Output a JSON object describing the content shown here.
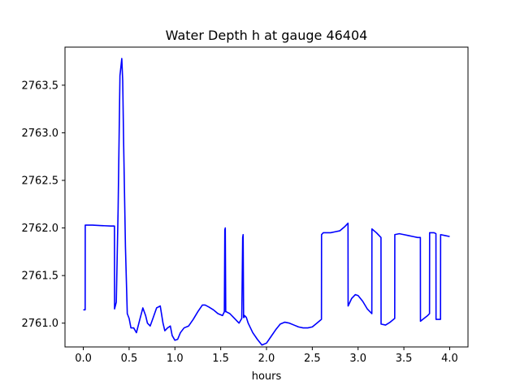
{
  "chart_data": {
    "type": "line",
    "title": "Water Depth h at gauge 46404",
    "xlabel": "hours",
    "ylabel": "",
    "xlim": [
      -0.2,
      4.2
    ],
    "ylim": [
      2760.75,
      2763.9
    ],
    "xticks": [
      0.0,
      0.5,
      1.0,
      1.5,
      2.0,
      2.5,
      3.0,
      3.5,
      4.0
    ],
    "xtick_labels": [
      "0.0",
      "0.5",
      "1.0",
      "1.5",
      "2.0",
      "2.5",
      "3.0",
      "3.5",
      "4.0"
    ],
    "yticks": [
      2761.0,
      2761.5,
      2762.0,
      2762.5,
      2763.0,
      2763.5
    ],
    "ytick_labels": [
      "2761.0",
      "2761.5",
      "2762.0",
      "2762.5",
      "2763.0",
      "2763.5"
    ],
    "grid": false,
    "series": [
      {
        "name": "",
        "color": "#0000ff",
        "x": [
          0.0,
          0.02,
          0.021,
          0.1,
          0.2,
          0.3,
          0.34,
          0.341,
          0.36,
          0.38,
          0.4,
          0.42,
          0.43,
          0.44,
          0.46,
          0.48,
          0.5,
          0.52,
          0.55,
          0.58,
          0.62,
          0.65,
          0.68,
          0.7,
          0.73,
          0.76,
          0.8,
          0.84,
          0.87,
          0.89,
          0.92,
          0.95,
          0.97,
          1.0,
          1.03,
          1.06,
          1.1,
          1.15,
          1.2,
          1.25,
          1.3,
          1.33,
          1.37,
          1.42,
          1.47,
          1.52,
          1.54,
          1.545,
          1.55,
          1.555,
          1.56,
          1.6,
          1.65,
          1.7,
          1.73,
          1.74,
          1.745,
          1.75,
          1.755,
          1.76,
          1.78,
          1.8,
          1.85,
          1.9,
          1.95,
          2.0,
          2.05,
          2.1,
          2.15,
          2.2,
          2.25,
          2.3,
          2.35,
          2.4,
          2.45,
          2.5,
          2.55,
          2.6,
          2.601,
          2.62,
          2.65,
          2.7,
          2.75,
          2.8,
          2.85,
          2.88,
          2.89,
          2.891,
          2.93,
          2.97,
          3.0,
          3.05,
          3.1,
          3.15,
          3.151,
          3.2,
          3.25,
          3.251,
          3.3,
          3.35,
          3.4,
          3.401,
          3.45,
          3.5,
          3.55,
          3.6,
          3.65,
          3.68,
          3.681,
          3.72,
          3.76,
          3.78,
          3.781,
          3.83,
          3.85,
          3.851,
          3.9,
          3.901,
          3.95,
          4.0
        ],
        "y": [
          2761.14,
          2761.14,
          2762.03,
          2762.03,
          2762.025,
          2762.02,
          2762.02,
          2761.15,
          2761.22,
          2762.2,
          2763.6,
          2763.78,
          2763.55,
          2762.9,
          2761.8,
          2761.1,
          2761.05,
          2760.95,
          2760.95,
          2760.9,
          2761.05,
          2761.16,
          2761.08,
          2761.0,
          2760.97,
          2761.05,
          2761.16,
          2761.18,
          2761.0,
          2760.92,
          2760.95,
          2760.97,
          2760.87,
          2760.82,
          2760.83,
          2760.9,
          2760.95,
          2760.97,
          2761.04,
          2761.12,
          2761.19,
          2761.19,
          2761.17,
          2761.14,
          2761.1,
          2761.08,
          2761.12,
          2761.98,
          2762.0,
          2761.12,
          2761.12,
          2761.1,
          2761.05,
          2761.0,
          2761.05,
          2761.9,
          2761.93,
          2761.06,
          2761.06,
          2761.08,
          2761.06,
          2761.0,
          2760.9,
          2760.83,
          2760.77,
          2760.79,
          2760.86,
          2760.93,
          2760.99,
          2761.01,
          2761.0,
          2760.98,
          2760.96,
          2760.95,
          2760.95,
          2760.96,
          2761.0,
          2761.04,
          2761.93,
          2761.95,
          2761.95,
          2761.95,
          2761.96,
          2761.97,
          2762.01,
          2762.04,
          2762.05,
          2761.18,
          2761.26,
          2761.3,
          2761.29,
          2761.23,
          2761.15,
          2761.1,
          2761.99,
          2761.95,
          2761.9,
          2760.99,
          2760.98,
          2761.01,
          2761.05,
          2761.93,
          2761.94,
          2761.93,
          2761.92,
          2761.91,
          2761.9,
          2761.9,
          2761.02,
          2761.05,
          2761.08,
          2761.1,
          2761.95,
          2761.95,
          2761.94,
          2761.04,
          2761.04,
          2761.93,
          2761.92,
          2761.91
        ]
      }
    ]
  }
}
